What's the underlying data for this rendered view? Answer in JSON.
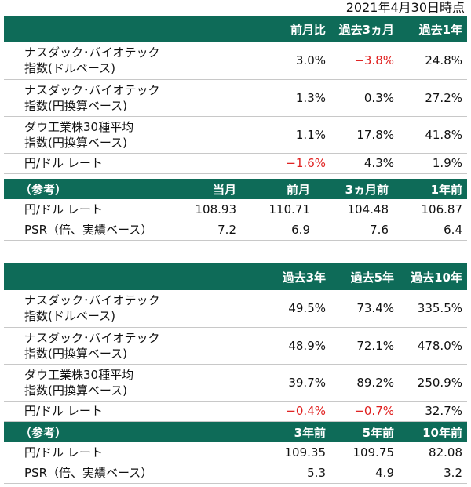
{
  "date_note": "2021年4月30日時点",
  "table1": {
    "header": [
      "",
      "前月比",
      "過去3ヵ月",
      "過去1年"
    ],
    "rows": [
      {
        "label": "ナスダック･バイオテック\n指数(ドルベース)",
        "values": [
          "3.0%",
          "−3.8%",
          "24.8%"
        ],
        "neg": [
          false,
          true,
          false
        ]
      },
      {
        "label": "ナスダック･バイオテック\n指数(円換算ベース)",
        "values": [
          "1.3%",
          "0.3%",
          "27.2%"
        ],
        "neg": [
          false,
          false,
          false
        ]
      },
      {
        "label": "ダウ工業株30種平均\n指数(円換算ベース)",
        "values": [
          "1.1%",
          "17.8%",
          "41.8%"
        ],
        "neg": [
          false,
          false,
          false
        ]
      },
      {
        "label": "円/ドル レート",
        "values": [
          "−1.6%",
          "4.3%",
          "1.9%"
        ],
        "neg": [
          true,
          false,
          false
        ]
      }
    ],
    "ref_header": [
      "（参考）",
      "当月",
      "前月",
      "3ヵ月前",
      "1年前"
    ],
    "ref_rows": [
      {
        "label": "円/ドル レート",
        "values": [
          "108.93",
          "110.71",
          "104.48",
          "106.87"
        ]
      },
      {
        "label": "PSR（倍、実績ベース）",
        "values": [
          "7.2",
          "6.9",
          "7.6",
          "6.4"
        ]
      }
    ]
  },
  "table2": {
    "header": [
      "",
      "過去3年",
      "過去5年",
      "過去10年"
    ],
    "rows": [
      {
        "label": "ナスダック･バイオテック\n指数(ドルベース)",
        "values": [
          "49.5%",
          "73.4%",
          "335.5%"
        ],
        "neg": [
          false,
          false,
          false
        ]
      },
      {
        "label": "ナスダック･バイオテック\n指数(円換算ベース)",
        "values": [
          "48.9%",
          "72.1%",
          "478.0%"
        ],
        "neg": [
          false,
          false,
          false
        ]
      },
      {
        "label": "ダウ工業株30種平均\n指数(円換算ベース)",
        "values": [
          "39.7%",
          "89.2%",
          "250.9%"
        ],
        "neg": [
          false,
          false,
          false
        ]
      },
      {
        "label": "円/ドル レート",
        "values": [
          "−0.4%",
          "−0.7%",
          "32.7%"
        ],
        "neg": [
          true,
          true,
          false
        ]
      }
    ],
    "ref_header": [
      "（参考）",
      "3年前",
      "5年前",
      "10年前"
    ],
    "ref_rows": [
      {
        "label": "円/ドル レート",
        "values": [
          "109.35",
          "109.75",
          "82.08"
        ]
      },
      {
        "label": "PSR（倍、実績ベース）",
        "values": [
          "5.3",
          "4.9",
          "3.2"
        ]
      }
    ]
  }
}
